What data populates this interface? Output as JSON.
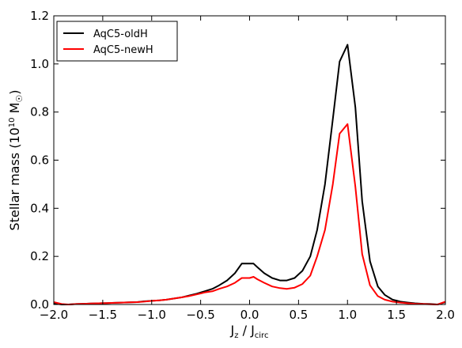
{
  "chart_data": {
    "type": "line",
    "xlabel": {
      "main": "J",
      "sub1": "z",
      "sep": " / J",
      "sub2": "circ"
    },
    "ylabel": {
      "main": "Stellar mass (10",
      "sup": "10",
      "unit": " M",
      "sun": "☉",
      "close": ")"
    },
    "xlim": [
      -2.0,
      2.0
    ],
    "ylim": [
      0.0,
      1.2
    ],
    "xticks": [
      -2.0,
      -1.5,
      -1.0,
      -0.5,
      0.0,
      0.5,
      1.0,
      1.5,
      2.0
    ],
    "xtick_labels": [
      "−2.0",
      "−1.5",
      "−1.0",
      "−0.5",
      "0.0",
      "0.5",
      "1.0",
      "1.5",
      "2.0"
    ],
    "yticks": [
      0.0,
      0.2,
      0.4,
      0.6,
      0.8,
      1.0,
      1.2
    ],
    "ytick_labels": [
      "0.0",
      "0.2",
      "0.4",
      "0.6",
      "0.8",
      "1.0",
      "1.2"
    ],
    "grid": false,
    "legend_position": "top-left",
    "series": [
      {
        "name": "AqC5-oldH",
        "color": "#000000",
        "x": [
          -2.0,
          -1.92,
          -1.85,
          -1.77,
          -1.69,
          -1.62,
          -1.54,
          -1.46,
          -1.38,
          -1.31,
          -1.23,
          -1.15,
          -1.08,
          -1.0,
          -0.92,
          -0.85,
          -0.77,
          -0.69,
          -0.62,
          -0.54,
          -0.46,
          -0.38,
          -0.31,
          -0.23,
          -0.15,
          -0.08,
          0.0,
          0.04,
          0.08,
          0.15,
          0.23,
          0.31,
          0.38,
          0.46,
          0.54,
          0.62,
          0.69,
          0.77,
          0.85,
          0.92,
          1.0,
          1.08,
          1.15,
          1.23,
          1.31,
          1.38,
          1.46,
          1.54,
          1.62,
          1.69,
          1.77,
          1.85,
          1.92,
          2.0
        ],
        "y": [
          0.005,
          0.0,
          0.0,
          0.002,
          0.003,
          0.004,
          0.005,
          0.006,
          0.007,
          0.008,
          0.009,
          0.01,
          0.013,
          0.015,
          0.017,
          0.02,
          0.025,
          0.03,
          0.037,
          0.045,
          0.055,
          0.065,
          0.08,
          0.1,
          0.13,
          0.17,
          0.17,
          0.17,
          0.155,
          0.13,
          0.11,
          0.1,
          0.1,
          0.11,
          0.14,
          0.2,
          0.31,
          0.5,
          0.77,
          1.01,
          1.08,
          0.82,
          0.43,
          0.18,
          0.075,
          0.04,
          0.02,
          0.012,
          0.008,
          0.005,
          0.003,
          0.002,
          0.0,
          0.01
        ]
      },
      {
        "name": "AqC5-newH",
        "color": "#ff0000",
        "x": [
          -2.0,
          -1.92,
          -1.85,
          -1.77,
          -1.69,
          -1.62,
          -1.54,
          -1.46,
          -1.38,
          -1.31,
          -1.23,
          -1.15,
          -1.08,
          -1.0,
          -0.92,
          -0.85,
          -0.77,
          -0.69,
          -0.62,
          -0.54,
          -0.46,
          -0.38,
          -0.31,
          -0.23,
          -0.15,
          -0.08,
          0.0,
          0.04,
          0.08,
          0.15,
          0.23,
          0.31,
          0.38,
          0.46,
          0.54,
          0.62,
          0.69,
          0.77,
          0.85,
          0.92,
          1.0,
          1.08,
          1.15,
          1.23,
          1.31,
          1.38,
          1.46,
          1.54,
          1.62,
          1.69,
          1.77,
          1.85,
          1.92,
          2.0
        ],
        "y": [
          0.01,
          0.002,
          0.0,
          0.002,
          0.003,
          0.004,
          0.005,
          0.006,
          0.007,
          0.008,
          0.009,
          0.01,
          0.012,
          0.015,
          0.017,
          0.02,
          0.025,
          0.03,
          0.035,
          0.042,
          0.05,
          0.055,
          0.065,
          0.075,
          0.09,
          0.11,
          0.11,
          0.115,
          0.105,
          0.09,
          0.075,
          0.068,
          0.065,
          0.07,
          0.085,
          0.12,
          0.2,
          0.31,
          0.5,
          0.71,
          0.75,
          0.49,
          0.21,
          0.08,
          0.035,
          0.02,
          0.012,
          0.008,
          0.005,
          0.003,
          0.002,
          0.001,
          0.0,
          0.012
        ]
      }
    ]
  }
}
